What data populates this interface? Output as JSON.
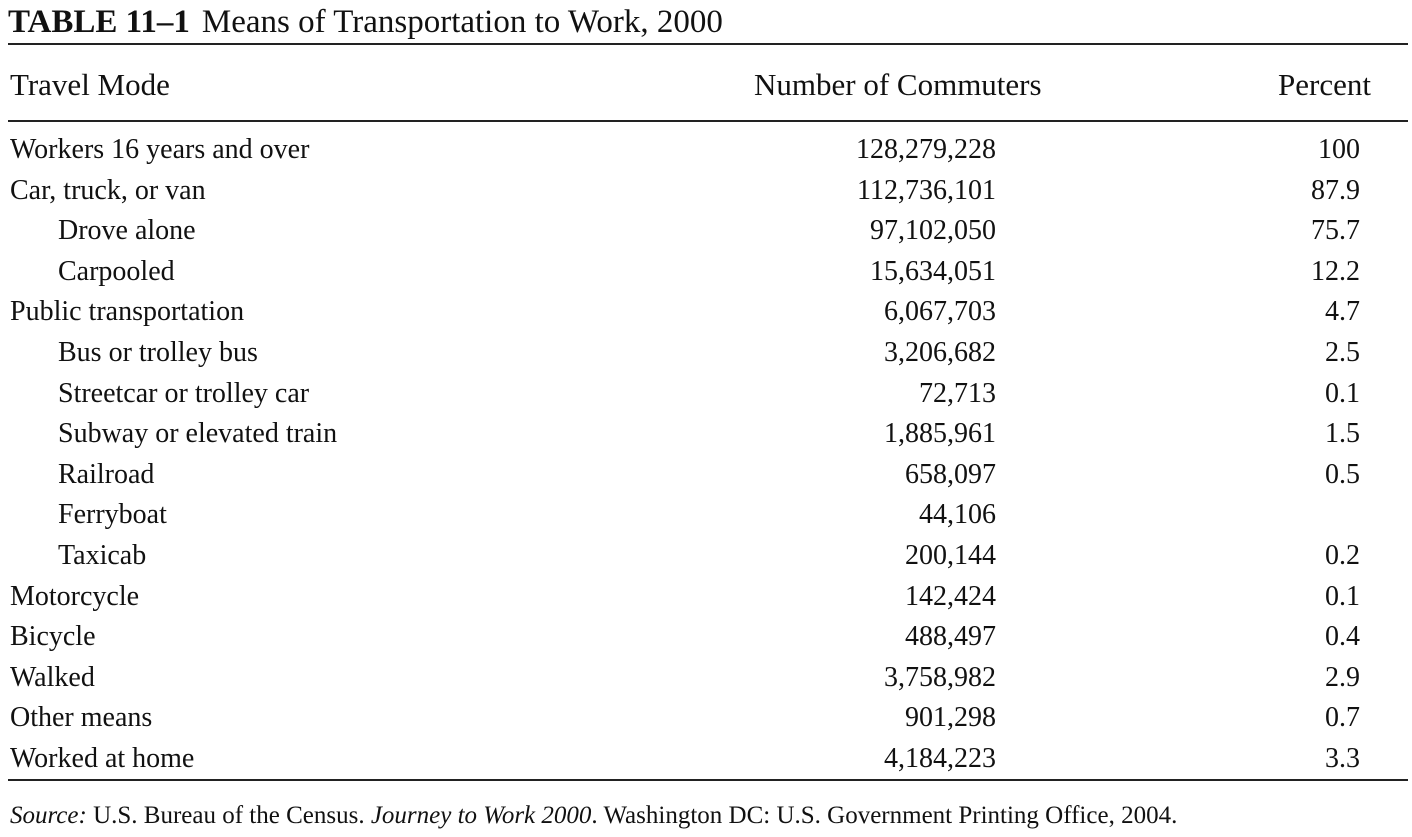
{
  "table": {
    "label": "TABLE 11–1",
    "title": "Means of Transportation to Work, 2000",
    "columns": [
      "Travel Mode",
      "Number of Commuters",
      "Percent"
    ],
    "rows": [
      {
        "mode": "Workers 16 years and over",
        "commuters": "128,279,228",
        "percent": "100",
        "indent": false
      },
      {
        "mode": "Car, truck, or van",
        "commuters": "112,736,101",
        "percent": "87.9",
        "indent": false
      },
      {
        "mode": "Drove alone",
        "commuters": "97,102,050",
        "percent": "75.7",
        "indent": true
      },
      {
        "mode": "Carpooled",
        "commuters": "15,634,051",
        "percent": "12.2",
        "indent": true
      },
      {
        "mode": "Public transportation",
        "commuters": "6,067,703",
        "percent": "4.7",
        "indent": false
      },
      {
        "mode": "Bus or trolley bus",
        "commuters": "3,206,682",
        "percent": "2.5",
        "indent": true
      },
      {
        "mode": "Streetcar or trolley car",
        "commuters": "72,713",
        "percent": "0.1",
        "indent": true
      },
      {
        "mode": "Subway or elevated train",
        "commuters": "1,885,961",
        "percent": "1.5",
        "indent": true
      },
      {
        "mode": "Railroad",
        "commuters": "658,097",
        "percent": "0.5",
        "indent": true
      },
      {
        "mode": "Ferryboat",
        "commuters": "44,106",
        "percent": "",
        "indent": true
      },
      {
        "mode": "Taxicab",
        "commuters": "200,144",
        "percent": "0.2",
        "indent": true
      },
      {
        "mode": "Motorcycle",
        "commuters": "142,424",
        "percent": "0.1",
        "indent": false
      },
      {
        "mode": "Bicycle",
        "commuters": "488,497",
        "percent": "0.4",
        "indent": false
      },
      {
        "mode": "Walked",
        "commuters": "3,758,982",
        "percent": "2.9",
        "indent": false
      },
      {
        "mode": "Other means",
        "commuters": "901,298",
        "percent": "0.7",
        "indent": false
      },
      {
        "mode": "Worked at home",
        "commuters": "4,184,223",
        "percent": "3.3",
        "indent": false
      }
    ]
  },
  "source": {
    "prefix": "Source:",
    "publisher": " U.S. Bureau of the Census. ",
    "work": "Journey to Work 2000",
    "rest": ". Washington DC: U.S. Government Printing Office, 2004."
  }
}
